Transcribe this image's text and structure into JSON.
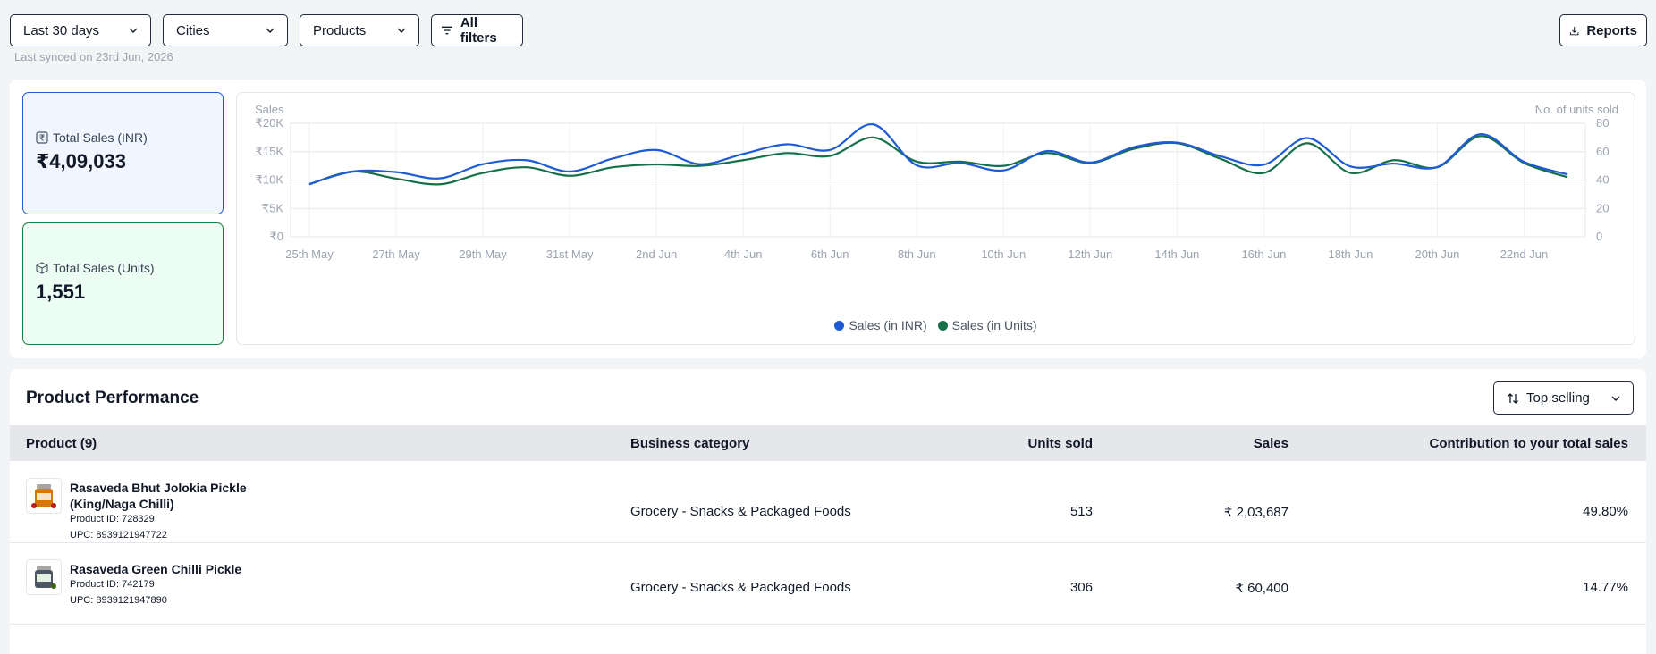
{
  "filters": {
    "period": "Last 30 days",
    "cities": "Cities",
    "products": "Products",
    "all_filters": "All filters"
  },
  "reports_label": "Reports",
  "last_synced": "Last synced on 23rd Jun, 2026",
  "kpis": {
    "sales_inr": {
      "label": "Total Sales (INR)",
      "value": "₹4,09,033"
    },
    "sales_units": {
      "label": "Total Sales (Units)",
      "value": "1,551"
    }
  },
  "chart_data": {
    "type": "line",
    "title": "",
    "ylabel_left": "Sales",
    "ylabel_right": "No. of units sold",
    "y_left_ticks": [
      "₹0",
      "₹5K",
      "₹10K",
      "₹15K",
      "₹20K"
    ],
    "y_left_range": [
      0,
      20000
    ],
    "y_right_ticks": [
      "0",
      "20",
      "40",
      "60",
      "80"
    ],
    "y_right_range": [
      0,
      80
    ],
    "x_tick_labels": [
      "25th May",
      "27th May",
      "29th May",
      "31st May",
      "2nd Jun",
      "4th Jun",
      "6th Jun",
      "8th Jun",
      "10th Jun",
      "12th Jun",
      "14th Jun",
      "16th Jun",
      "18th Jun",
      "20th Jun",
      "22nd Jun"
    ],
    "x": [
      "25th May",
      "26th May",
      "27th May",
      "28th May",
      "29th May",
      "30th May",
      "31st May",
      "1st Jun",
      "2nd Jun",
      "3rd Jun",
      "4th Jun",
      "5th Jun",
      "6th Jun",
      "7th Jun",
      "8th Jun",
      "9th Jun",
      "10th Jun",
      "11th Jun",
      "12th Jun",
      "13th Jun",
      "14th Jun",
      "15th Jun",
      "16th Jun",
      "17th Jun",
      "18th Jun",
      "19th Jun",
      "20th Jun",
      "21st Jun",
      "22nd Jun",
      "23rd Jun"
    ],
    "series": [
      {
        "name": "Sales (in INR)",
        "axis": "left",
        "color": "#1e5bd4",
        "values": [
          9300,
          11500,
          11400,
          10300,
          12800,
          13500,
          11500,
          13800,
          15300,
          12800,
          14600,
          16300,
          15300,
          19800,
          12600,
          13000,
          11700,
          15100,
          13100,
          15800,
          16600,
          14200,
          12700,
          17400,
          12400,
          12900,
          12300,
          18100,
          13200,
          11000
        ]
      },
      {
        "name": "Sales (in Units)",
        "axis": "right",
        "color": "#15704a",
        "values": [
          37,
          46,
          41,
          37,
          45,
          49,
          43,
          49,
          51,
          50,
          54,
          59,
          57,
          70,
          53,
          53,
          50,
          59,
          52,
          62,
          66,
          55,
          45,
          66,
          45,
          54,
          49,
          71,
          52,
          42
        ]
      }
    ],
    "grid": true,
    "legend_position": "bottom"
  },
  "performance": {
    "title": "Product Performance",
    "sort_label": "Top selling",
    "columns": [
      "Product (9)",
      "Business category",
      "Units sold",
      "Sales",
      "Contribution to your total sales"
    ],
    "rows": [
      {
        "name": "Rasaveda Bhut Jolokia Pickle (King/Naga Chilli)",
        "product_id": "Product ID: 728329",
        "upc": "UPC: 8939121947722",
        "category": "Grocery - Snacks & Packaged Foods",
        "units": "513",
        "sales": "₹ 2,03,687",
        "contribution": "49.80%"
      },
      {
        "name": "Rasaveda Green Chilli Pickle",
        "product_id": "Product ID: 742179",
        "upc": "UPC: 8939121947890",
        "category": "Grocery - Snacks & Packaged Foods",
        "units": "306",
        "sales": "₹ 60,400",
        "contribution": "14.77%"
      }
    ]
  }
}
